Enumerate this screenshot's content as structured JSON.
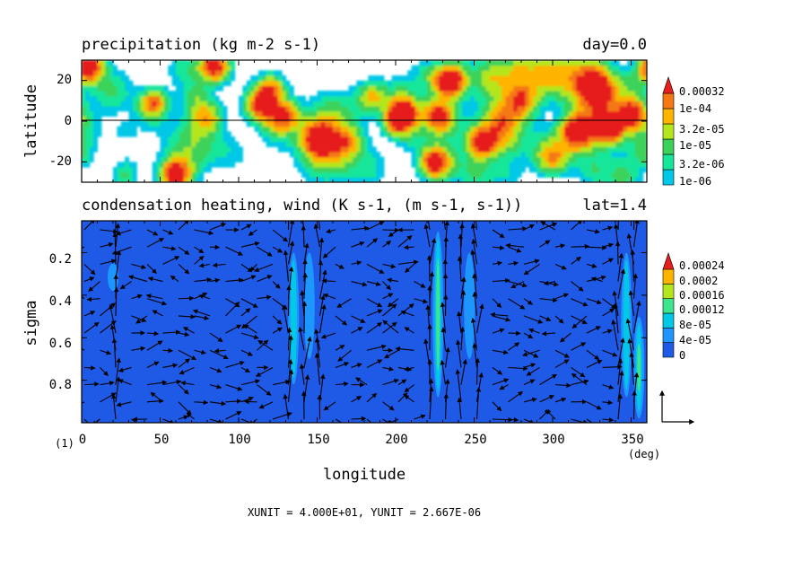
{
  "panels": {
    "top": {
      "title": "precipitation (kg m-2 s-1)",
      "right_label": "day=0.0",
      "ylabel": "latitude",
      "yticks": [
        "20",
        "0",
        "-20"
      ],
      "colorbar": [
        "0.00032",
        "1e-04",
        "3.2e-05",
        "1e-05",
        "3.2e-06",
        "1e-06"
      ]
    },
    "bottom": {
      "title": "condensation heating, wind (K s-1, (m s-1, s-1))",
      "right_label": "lat=1.4",
      "ylabel": "sigma",
      "yticks": [
        "0.2",
        "0.4",
        "0.6",
        "0.8"
      ],
      "xlabel": "longitude",
      "xticks": [
        "0",
        "50",
        "100",
        "150",
        "200",
        "250",
        "300",
        "350"
      ],
      "x_unit": "(deg)",
      "frame_number": "(1)",
      "colorbar": [
        "0.00024",
        "0.0002",
        "0.00016",
        "0.00012",
        "8e-05",
        "4e-05",
        "0"
      ],
      "units_note": "XUNIT = 4.000E+01, YUNIT = 2.667E-06"
    }
  },
  "colors": {
    "precip_levels": [
      "#00c8e6",
      "#14e69a",
      "#3cd25a",
      "#b4e61e",
      "#ffb400",
      "#f57814",
      "#e61e1e"
    ],
    "heating_levels": [
      "#1e5ae6",
      "#1e96ff",
      "#00c8e6",
      "#3ce68c",
      "#b4e61e",
      "#ffb400",
      "#e61e1e"
    ]
  },
  "chart_data": [
    {
      "type": "heatmap",
      "title": "precipitation (kg m-2 s-1)",
      "xlabel": "longitude",
      "ylabel": "latitude",
      "xlim": [
        0,
        360
      ],
      "ylim": [
        -30,
        30
      ],
      "levels": [
        1e-06,
        3.2e-06,
        1e-05,
        3.2e-05,
        0.0001,
        0.00032
      ],
      "hotspots": [
        {
          "lon": 5,
          "lat": 27,
          "value": 0.00032
        },
        {
          "lon": 60,
          "lat": -26,
          "value": 0.00032
        },
        {
          "lon": 85,
          "lat": 27,
          "value": 0.00032
        },
        {
          "lon": 113,
          "lat": 8,
          "value": 0.0001
        },
        {
          "lon": 120,
          "lat": 15,
          "value": 0.0001
        },
        {
          "lon": 130,
          "lat": 3,
          "value": 0.0001
        },
        {
          "lon": 152,
          "lat": -8,
          "value": 0.0001
        },
        {
          "lon": 205,
          "lat": 4,
          "value": 0.00032
        },
        {
          "lon": 225,
          "lat": -20,
          "value": 0.00032
        },
        {
          "lon": 227,
          "lat": 3,
          "value": 0.0001
        },
        {
          "lon": 235,
          "lat": 19,
          "value": 0.00032
        },
        {
          "lon": 255,
          "lat": -10,
          "value": 0.00032
        },
        {
          "lon": 315,
          "lat": -5,
          "value": 0.00032
        },
        {
          "lon": 328,
          "lat": 15,
          "value": 0.0001
        },
        {
          "lon": 335,
          "lat": -2,
          "value": 0.00032
        },
        {
          "lon": 350,
          "lat": 4,
          "value": 0.00032
        },
        {
          "lon": 45,
          "lat": 8,
          "value": 1e-05
        },
        {
          "lon": 80,
          "lat": 2,
          "value": 1e-05
        },
        {
          "lon": 170,
          "lat": -10,
          "value": 1e-05
        },
        {
          "lon": 185,
          "lat": 12,
          "value": 1e-05
        },
        {
          "lon": 280,
          "lat": 10,
          "value": 1e-05
        },
        {
          "lon": 300,
          "lat": -18,
          "value": 1e-05
        }
      ]
    },
    {
      "type": "heatmap",
      "title": "condensation heating, wind (K s-1, (m s-1, s-1))",
      "xlabel": "longitude",
      "ylabel": "sigma",
      "xlim": [
        0,
        360
      ],
      "ylim": [
        1.0,
        0.05
      ],
      "levels": [
        0,
        4e-05,
        8e-05,
        0.00012,
        0.00016,
        0.0002,
        0.00024
      ],
      "columns": [
        {
          "lon": 20,
          "sigma_top": 0.25,
          "sigma_bottom": 0.38,
          "value": 4e-05
        },
        {
          "lon": 135,
          "sigma_top": 0.2,
          "sigma_bottom": 0.82,
          "value": 8e-05
        },
        {
          "lon": 145,
          "sigma_top": 0.2,
          "sigma_bottom": 0.7,
          "value": 4e-05
        },
        {
          "lon": 227,
          "sigma_top": 0.1,
          "sigma_bottom": 0.88,
          "value": 0.00012
        },
        {
          "lon": 247,
          "sigma_top": 0.2,
          "sigma_bottom": 0.7,
          "value": 4e-05
        },
        {
          "lon": 347,
          "sigma_top": 0.2,
          "sigma_bottom": 0.88,
          "value": 8e-05
        },
        {
          "lon": 355,
          "sigma_top": 0.5,
          "sigma_bottom": 0.98,
          "value": 0.00012
        }
      ]
    }
  ]
}
